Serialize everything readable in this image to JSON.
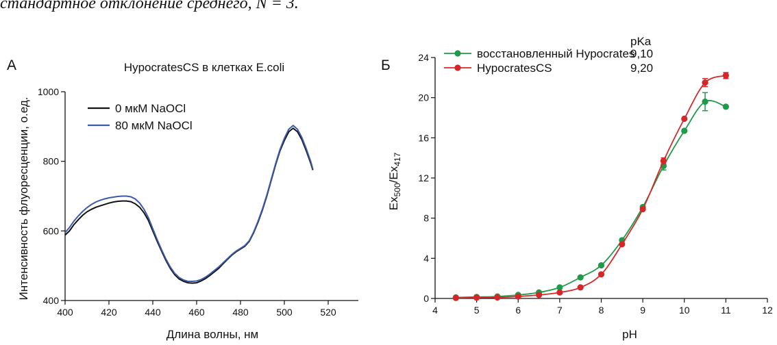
{
  "caption": "стандартное отклонение среднего, N = 3.",
  "chart_data": [
    {
      "panel_label": "А",
      "type": "line",
      "title": "HypocratesCS в клетках E.coli",
      "xlabel": "Длина волны, нм",
      "ylabel": "Интенсивность флуоресценции, о.ед.",
      "xlim": [
        395,
        525
      ],
      "ylim": [
        400,
        1000
      ],
      "xticks": [
        400,
        420,
        440,
        460,
        480,
        500,
        520
      ],
      "yticks": [
        400,
        600,
        800,
        1000
      ],
      "legend_placement": "top-left",
      "grid": false,
      "series": [
        {
          "name": "0 мкМ NaOCl",
          "color": "#111111",
          "x": [
            400,
            402,
            404,
            406,
            408,
            410,
            412,
            414,
            416,
            418,
            420,
            422,
            424,
            426,
            428,
            430,
            432,
            434,
            436,
            438,
            440,
            442,
            444,
            446,
            448,
            450,
            452,
            454,
            456,
            458,
            460,
            462,
            464,
            466,
            468,
            470,
            472,
            474,
            476,
            478,
            480,
            482,
            484,
            486,
            488,
            490,
            492,
            494,
            496,
            498,
            500,
            502,
            504,
            506,
            508,
            510,
            512,
            513
          ],
          "y": [
            588,
            600,
            618,
            632,
            645,
            655,
            662,
            668,
            672,
            676,
            680,
            683,
            685,
            686,
            686,
            684,
            678,
            668,
            652,
            630,
            600,
            570,
            542,
            515,
            492,
            474,
            462,
            455,
            451,
            450,
            451,
            456,
            463,
            472,
            482,
            492,
            505,
            518,
            530,
            540,
            548,
            556,
            570,
            595,
            625,
            660,
            700,
            745,
            790,
            830,
            860,
            885,
            895,
            885,
            862,
            830,
            795,
            775
          ]
        },
        {
          "name": "80 мкМ NaOCl",
          "color": "#3a5aa8",
          "x": [
            400,
            402,
            404,
            406,
            408,
            410,
            412,
            414,
            416,
            418,
            420,
            422,
            424,
            426,
            428,
            430,
            432,
            434,
            436,
            438,
            440,
            442,
            444,
            446,
            448,
            450,
            452,
            454,
            456,
            458,
            460,
            462,
            464,
            466,
            468,
            470,
            472,
            474,
            476,
            478,
            480,
            482,
            484,
            486,
            488,
            490,
            492,
            494,
            496,
            498,
            500,
            502,
            504,
            506,
            508,
            510,
            512,
            513
          ],
          "y": [
            595,
            610,
            628,
            643,
            656,
            667,
            676,
            683,
            688,
            692,
            695,
            697,
            699,
            700,
            700,
            698,
            692,
            680,
            662,
            638,
            606,
            575,
            546,
            519,
            496,
            478,
            466,
            459,
            455,
            455,
            456,
            460,
            467,
            476,
            486,
            496,
            508,
            520,
            532,
            542,
            550,
            558,
            572,
            597,
            628,
            663,
            703,
            748,
            793,
            834,
            866,
            892,
            903,
            892,
            868,
            836,
            800,
            778
          ]
        }
      ]
    },
    {
      "panel_label": "Б",
      "type": "scatter",
      "xlabel": "pH",
      "ylabel": "Ex500/Ex417",
      "ylabel_main": "Ex",
      "ylabel_sub1": "500",
      "ylabel_slash": "/Ex",
      "ylabel_sub2": "417",
      "xlim": [
        4,
        12
      ],
      "ylim": [
        0,
        24
      ],
      "xticks": [
        4,
        5,
        6,
        7,
        8,
        9,
        10,
        11,
        12
      ],
      "yticks": [
        0,
        4,
        8,
        12,
        16,
        20,
        24
      ],
      "legend_placement": "top",
      "legend_header": "pKa",
      "grid": false,
      "series": [
        {
          "name": "восстановленный Hypocrates",
          "pKa": "9,10",
          "color": "#1f9a4a",
          "x": [
            4.5,
            5.0,
            5.5,
            6.0,
            6.5,
            7.0,
            7.5,
            8.0,
            8.5,
            9.0,
            9.5,
            10.0,
            10.5,
            11.0
          ],
          "y": [
            0.1,
            0.15,
            0.2,
            0.35,
            0.6,
            1.1,
            2.1,
            3.3,
            5.8,
            9.1,
            13.2,
            16.7,
            19.6,
            19.1
          ],
          "err": [
            0,
            0,
            0,
            0,
            0,
            0,
            0,
            0,
            0,
            0,
            0.4,
            0,
            0.9,
            0
          ]
        },
        {
          "name": "HypocratesCS",
          "pKa": "9,20",
          "color": "#d62728",
          "x": [
            4.5,
            5.0,
            5.5,
            6.0,
            6.5,
            7.0,
            7.5,
            8.0,
            8.5,
            9.0,
            9.5,
            10.0,
            10.5,
            11.0
          ],
          "y": [
            0.05,
            0.08,
            0.1,
            0.2,
            0.35,
            0.6,
            1.1,
            2.4,
            5.4,
            8.9,
            13.7,
            17.9,
            21.5,
            22.2
          ],
          "err": [
            0,
            0,
            0,
            0,
            0,
            0,
            0,
            0,
            0,
            0,
            0.3,
            0,
            0.4,
            0.3
          ]
        }
      ]
    }
  ]
}
